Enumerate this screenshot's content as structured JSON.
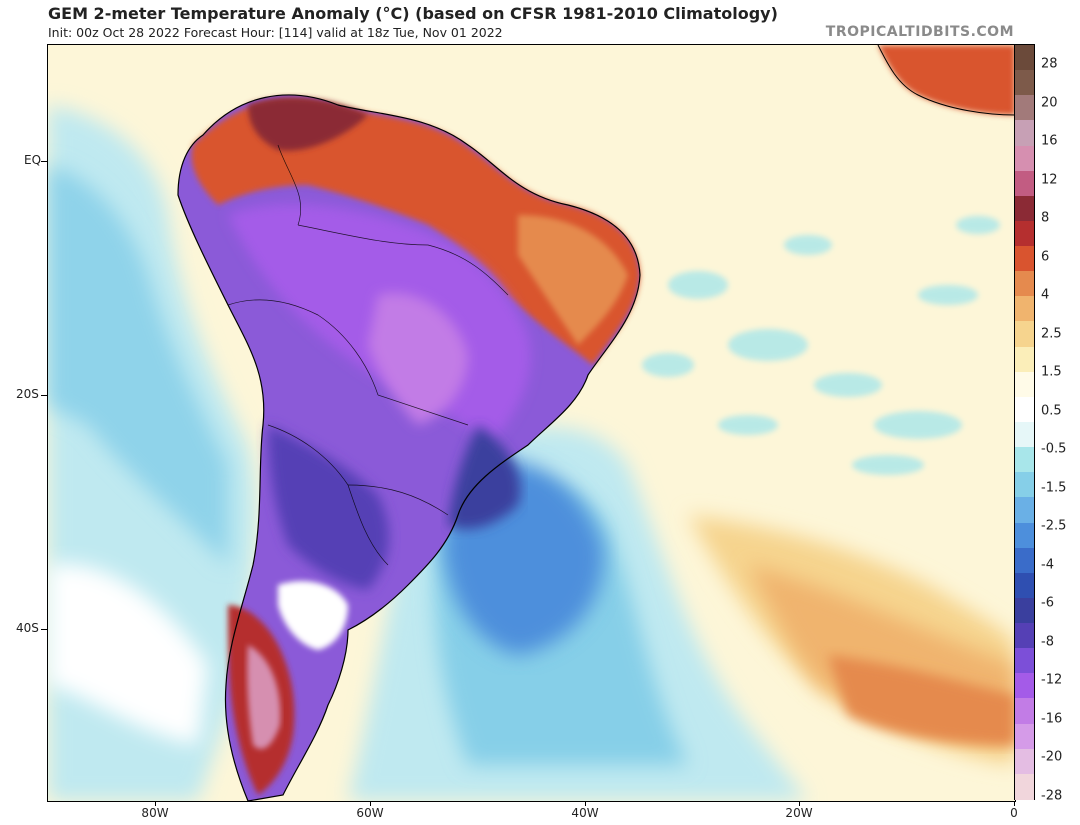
{
  "header": {
    "title": "GEM 2-meter Temperature Anomaly (°C) (based on CFSR 1981-2010 Climatology)",
    "subtitle": "Init: 00z Oct 28 2022   Forecast Hour: [114]   valid at 18z Tue, Nov 01 2022",
    "brand": "TROPICALTIDBITS.COM"
  },
  "axes": {
    "lat_labels": [
      "EQ",
      "20S",
      "40S"
    ],
    "lon_labels": [
      "80W",
      "60W",
      "40W",
      "20W",
      "0"
    ]
  },
  "colorbar": {
    "labels": [
      "28",
      "20",
      "16",
      "12",
      "8",
      "6",
      "4",
      "2.5",
      "1.5",
      "0.5",
      "-0.5",
      "-1.5",
      "-2.5",
      "-4",
      "-6",
      "-8",
      "-12",
      "-16",
      "-20",
      "-28"
    ],
    "colors": [
      "#6b4a3a",
      "#7d5a4a",
      "#a27a7a",
      "#c7a0b5",
      "#d68fb0",
      "#c25c82",
      "#8b2a35",
      "#b52f2f",
      "#d9542f",
      "#e58a4e",
      "#f0b46e",
      "#f6d48e",
      "#fbeeb9",
      "#fffbe8",
      "#ffffff",
      "#e6f7f8",
      "#a8e6ea",
      "#86cfe8",
      "#6ab0e6",
      "#4d8fdc",
      "#3a6cc9",
      "#2f4fb1",
      "#3a3f9e",
      "#5540b5",
      "#7c4fd8",
      "#a45be8",
      "#c27ce6",
      "#d59be8",
      "#e4bde3",
      "#f1d6dc"
    ]
  },
  "legend": {
    "units": "°C"
  }
}
